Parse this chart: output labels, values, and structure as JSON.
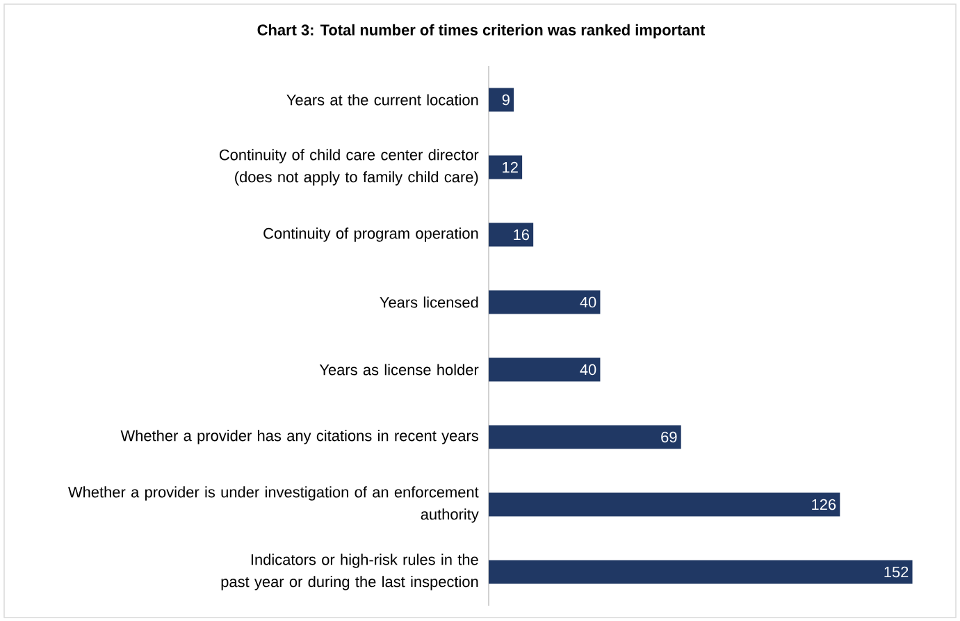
{
  "chart_data": {
    "type": "bar",
    "orientation": "horizontal",
    "title": "Chart 3: Total number of times criterion was ranked important",
    "categories": [
      "Years at the current location",
      "Continuity of child care center director (does not apply to family child care)",
      "Continuity of program operation",
      "Years licensed",
      "Years as license holder",
      "Whether a provider has any citations in recent years",
      "Whether a provider is under investigation of an enforcement authority",
      "Indicators or high-risk rules in the past year or during the last inspection"
    ],
    "values": [
      9,
      12,
      16,
      40,
      40,
      69,
      126,
      152
    ],
    "color": "#203864",
    "data_labels": true,
    "tick_labels": "y"
  }
}
